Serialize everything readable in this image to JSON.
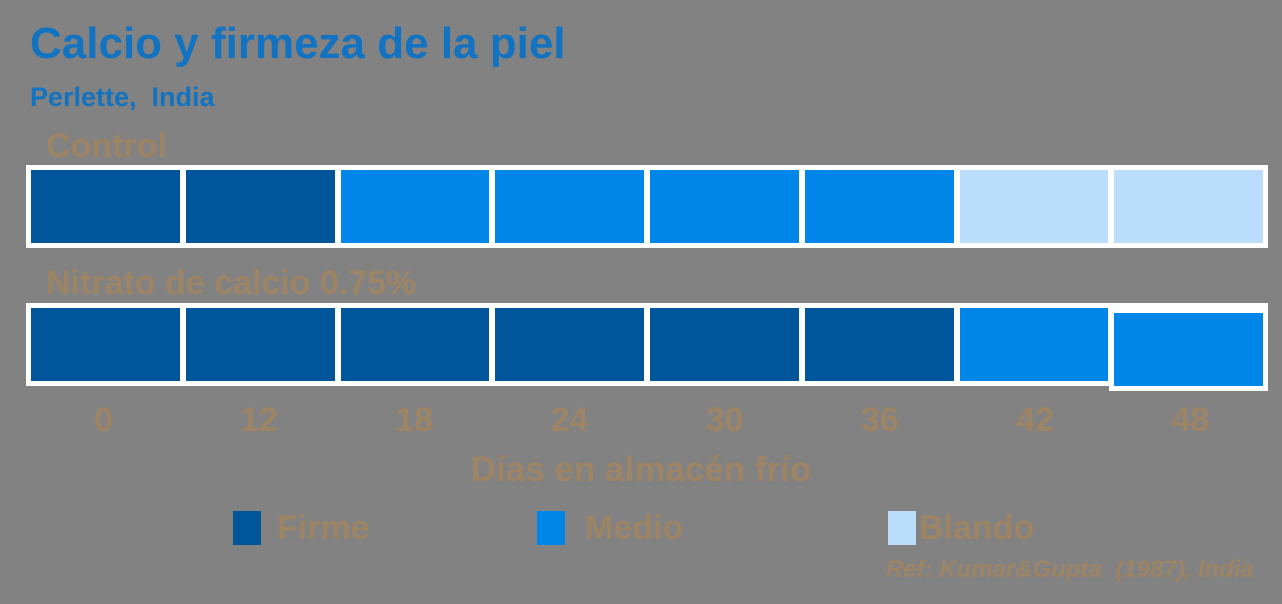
{
  "title": "Calcio y firmeza de la piel",
  "subtitle": "Perlette,  India",
  "reference": "Ref: Kumar&Gupta  (1987), India",
  "colors": {
    "background": "#828282",
    "title_text": "#1173C1",
    "label_text": "#9C8465",
    "bar_frame": "#FFFFFF",
    "firme": "#00559B",
    "medio": "#0086E8",
    "blando": "#B9DDFB"
  },
  "chart_data": {
    "type": "heatmap",
    "title": "Calcio y firmeza de la piel",
    "subtitle": "Perlette, India",
    "x": [
      0,
      12,
      18,
      24,
      30,
      36,
      42,
      48
    ],
    "xlabel": "Días en almacén frío",
    "grid": false,
    "legend_position": "bottom",
    "rows": [
      {
        "label": "Control",
        "values": [
          "Firme",
          "Firme",
          "Medio",
          "Medio",
          "Medio",
          "Medio",
          "Blando",
          "Blando"
        ]
      },
      {
        "label": "Nitrato de calcio 0.75%",
        "values": [
          "Firme",
          "Firme",
          "Firme",
          "Firme",
          "Firme",
          "Firme",
          "Medio",
          "Medio"
        ]
      }
    ],
    "legend": [
      {
        "label": "Firme",
        "color": "#00559B"
      },
      {
        "label": "Medio",
        "color": "#0086E8"
      },
      {
        "label": "Blando",
        "color": "#B9DDFB"
      }
    ]
  }
}
